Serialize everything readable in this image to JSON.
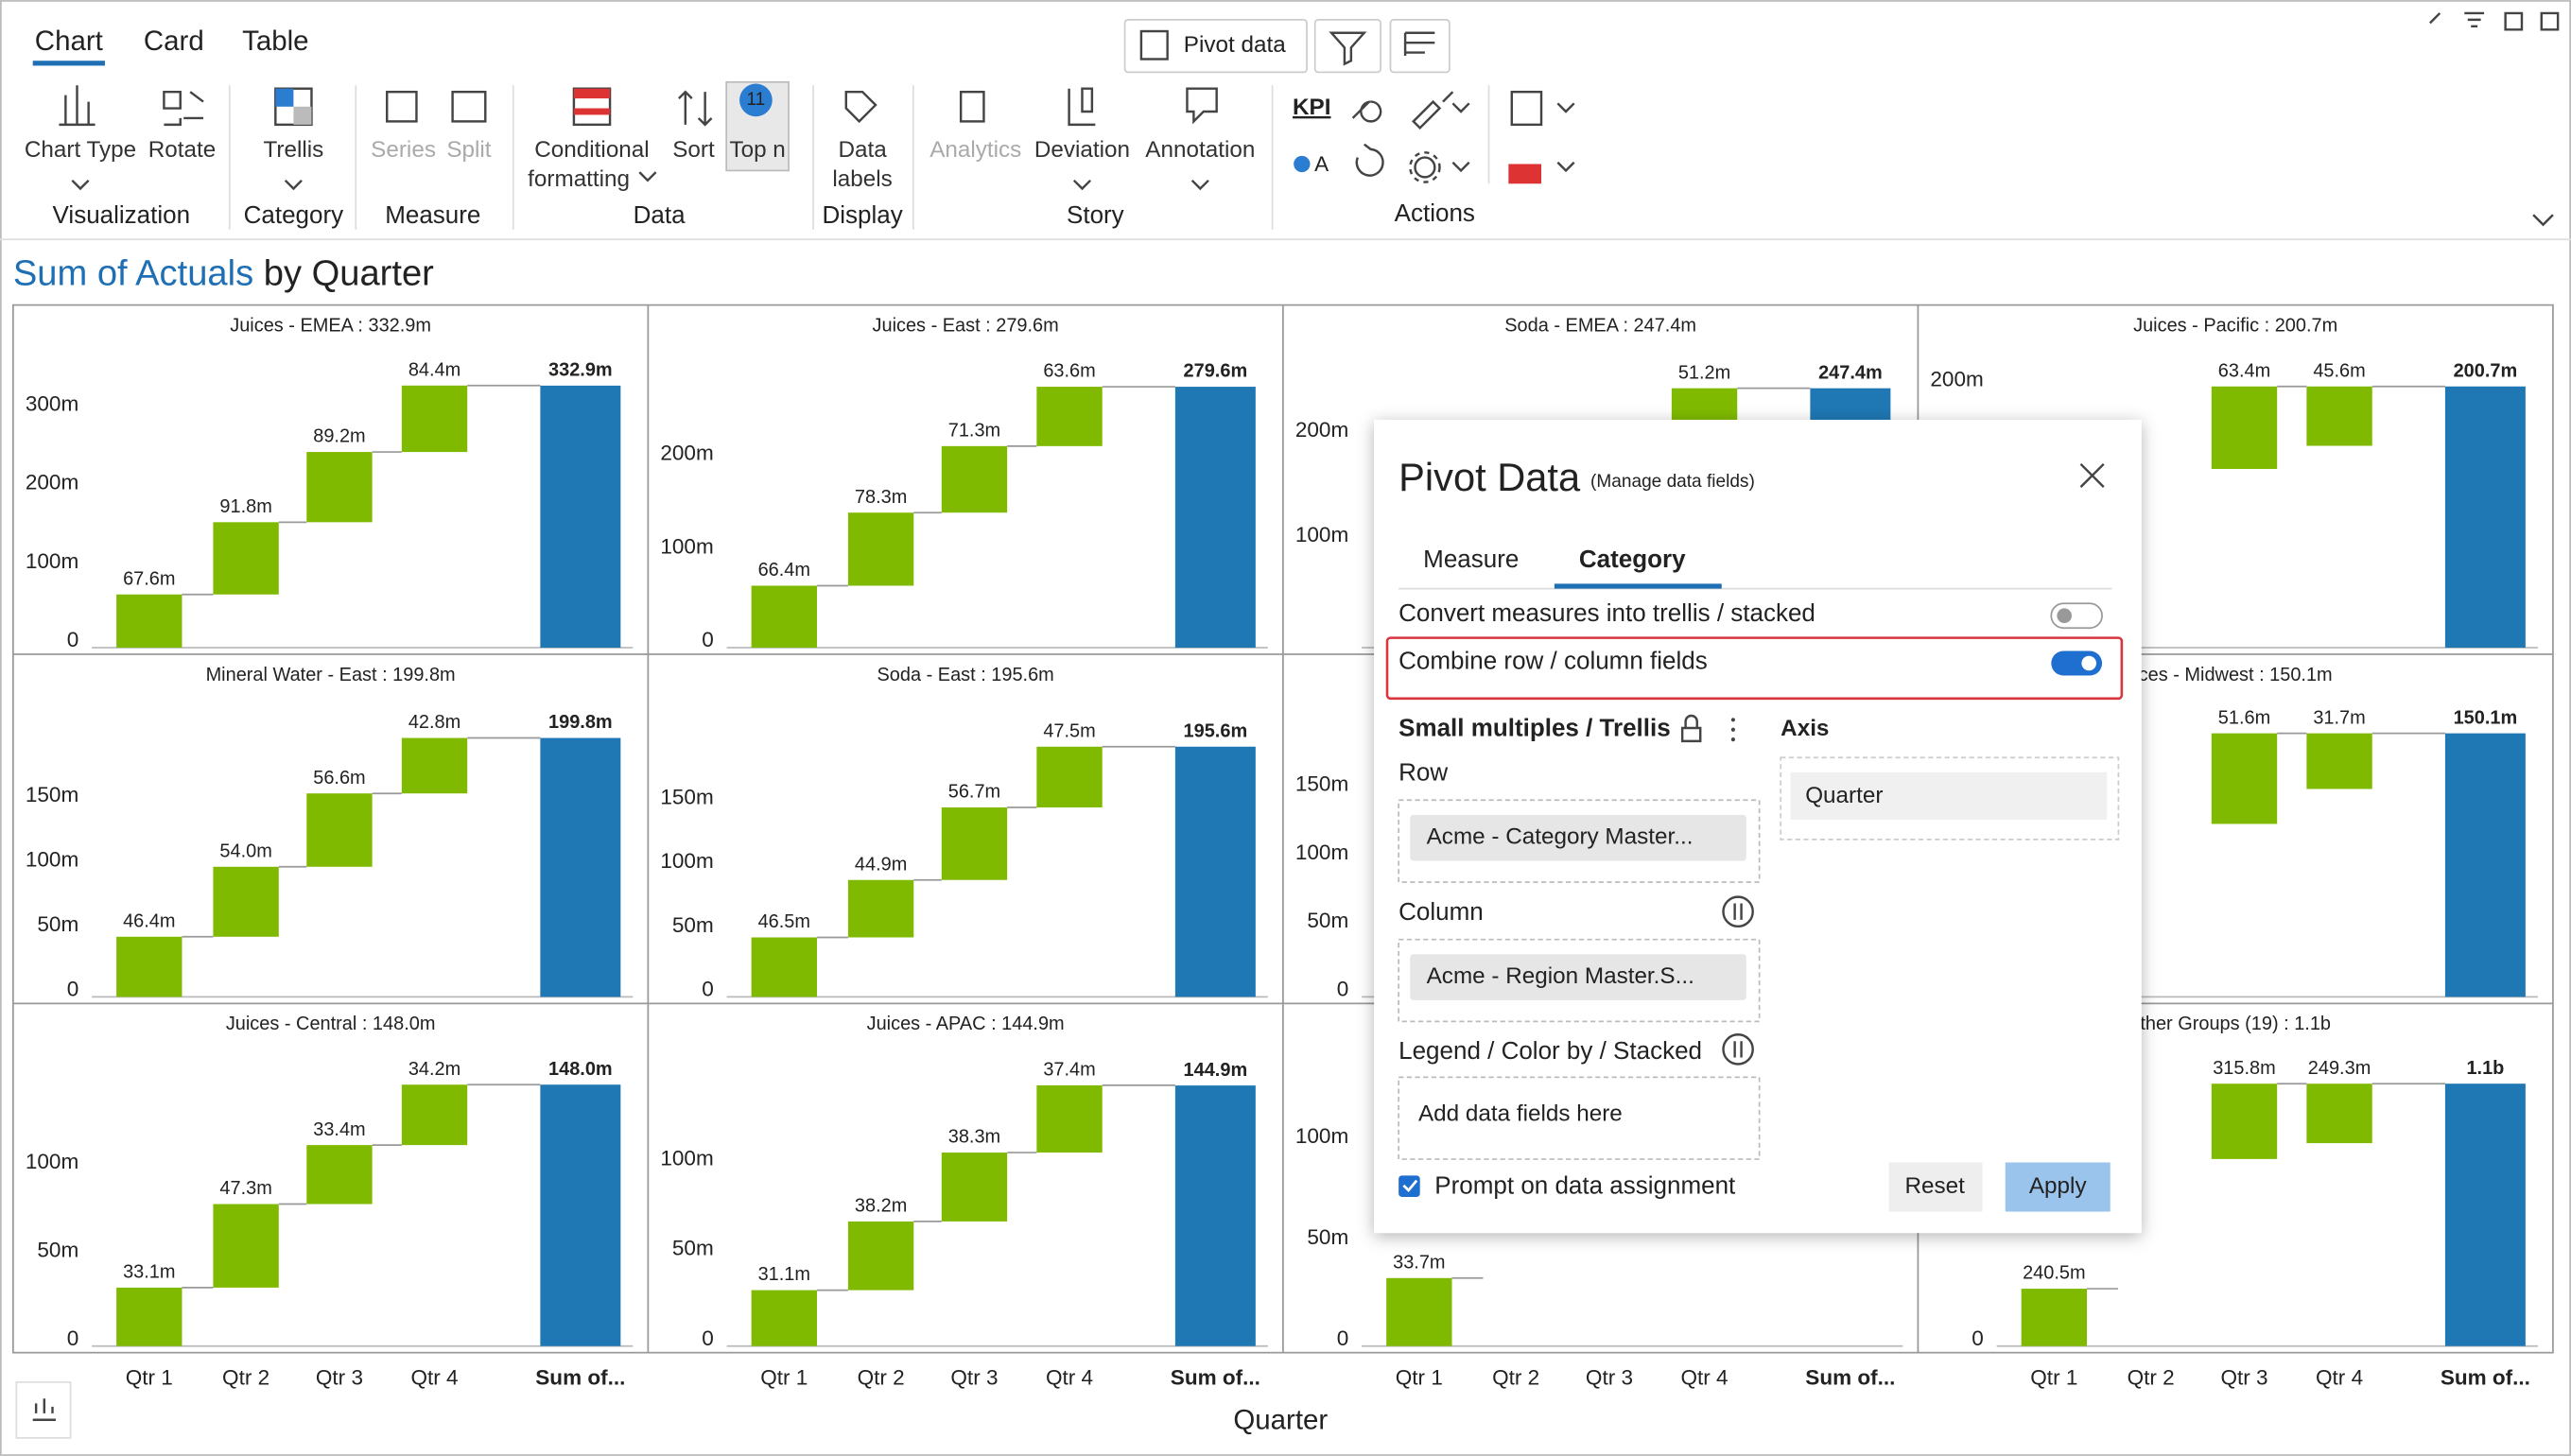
{
  "tabs": [
    "Chart",
    "Card",
    "Table"
  ],
  "pivot_button": "Pivot data",
  "ribbon": {
    "chart_type": "Chart Type",
    "rotate": "Rotate",
    "visualization": "Visualization",
    "trellis": "Trellis",
    "category": "Category",
    "series": "Series",
    "split": "Split",
    "measure": "Measure",
    "conditional": "Conditional",
    "formatting": "formatting",
    "sort": "Sort",
    "top_n": "Top n",
    "top_n_badge": "11",
    "data_group": "Data",
    "data": "Data",
    "labels": "labels",
    "display": "Display",
    "analytics": "Analytics",
    "deviation": "Deviation",
    "annotation": "Annotation",
    "story": "Story",
    "kpi": "KPI",
    "a": "A",
    "actions": "Actions"
  },
  "title": {
    "measure": "Sum of Actuals",
    "rest": "by Quarter"
  },
  "categories": [
    "Qtr 1",
    "Qtr 2",
    "Qtr 3",
    "Qtr 4",
    "Sum of..."
  ],
  "x_axis_title": "Quarter",
  "panels": [
    {
      "title": "Juices - EMEA :  332.9m",
      "values": [
        67.6,
        91.8,
        89.2,
        84.4
      ],
      "value_labels": [
        "67.6m",
        "91.8m",
        "89.2m",
        "84.4m"
      ],
      "total": 332.9,
      "total_label": "332.9m",
      "ylim": [
        0,
        377
      ],
      "yticks": [
        0,
        {
          "value": 100,
          "label": "100m"
        },
        {
          "value": 200,
          "label": "200m"
        },
        {
          "value": 300,
          "label": "300m"
        }
      ]
    },
    {
      "title": "Juices - East :  279.6m",
      "values": [
        66.4,
        78.3,
        71.3,
        63.6
      ],
      "value_labels": [
        "66.4m",
        "78.3m",
        "71.3m",
        "63.6m"
      ],
      "total": 279.6,
      "total_label": "279.6m",
      "ylim": [
        0,
        318
      ],
      "yticks": [
        0,
        {
          "value": 100,
          "label": "100m"
        },
        {
          "value": 200,
          "label": "200m"
        }
      ]
    },
    {
      "title": "Soda - EMEA :  247.4m",
      "values": [
        null,
        null,
        null,
        51.2
      ],
      "value_labels": [
        null,
        null,
        null,
        "51.2m"
      ],
      "total": 247.4,
      "total_label": "247.4m",
      "ylim": [
        0,
        283
      ],
      "yticks": [
        {
          "value": 100,
          "label": "100m"
        },
        {
          "value": 200,
          "label": "200m"
        }
      ]
    },
    {
      "title": "Juices - Pacific :  200.7m",
      "values": [
        null,
        null,
        63.4,
        45.6
      ],
      "value_labels": [
        null,
        null,
        "63.4m",
        "45.6m"
      ],
      "total": 200.7,
      "total_label": "200.7m",
      "ylim": [
        0,
        228
      ],
      "yticks": [
        {
          "value": 200,
          "label": "200m"
        }
      ]
    },
    {
      "title": "Mineral Water - East :  199.8m",
      "values": [
        46.4,
        54.0,
        56.6,
        42.8
      ],
      "value_labels": [
        "46.4m",
        "54.0m",
        "56.6m",
        "42.8m"
      ],
      "total": 199.8,
      "total_label": "199.8m",
      "ylim": [
        0,
        229
      ],
      "yticks": [
        0,
        {
          "value": 50,
          "label": "50m"
        },
        {
          "value": 100,
          "label": "100m"
        },
        {
          "value": 150,
          "label": "150m"
        }
      ]
    },
    {
      "title": "Soda - East :  195.6m",
      "values": [
        46.5,
        44.9,
        56.7,
        47.5
      ],
      "value_labels": [
        "46.5m",
        "44.9m",
        "56.7m",
        "47.5m"
      ],
      "total": 195.6,
      "total_label": "195.6m",
      "ylim": [
        0,
        232
      ],
      "yticks": [
        0,
        {
          "value": 50,
          "label": "50m"
        },
        {
          "value": 100,
          "label": "100m"
        },
        {
          "value": 150,
          "label": "150m"
        }
      ]
    },
    {
      "ylim": [
        0,
        217
      ],
      "yticks": [
        0,
        {
          "value": 50,
          "label": "50m"
        },
        {
          "value": 100,
          "label": "100m"
        },
        {
          "value": 150,
          "label": "150m"
        }
      ]
    },
    {
      "title": "ces - Midwest :  150.1m",
      "values": [
        null,
        null,
        51.6,
        31.7
      ],
      "value_labels": [
        null,
        null,
        "51.6m",
        "31.7m"
      ],
      "total": 150.1,
      "total_label": "150.1m",
      "ylim": [
        0,
        169
      ]
    },
    {
      "title": "Juices - Central :  148.0m",
      "values": [
        33.1,
        47.3,
        33.4,
        34.2
      ],
      "value_labels": [
        "33.1m",
        "47.3m",
        "33.4m",
        "34.2m"
      ],
      "total": 148.0,
      "total_label": "148.0m",
      "ylim": [
        0,
        168
      ],
      "yticks": [
        0,
        {
          "value": 50,
          "label": "50m"
        },
        {
          "value": 100,
          "label": "100m"
        }
      ]
    },
    {
      "title": "Juices - APAC :  144.9m",
      "values": [
        31.1,
        38.2,
        38.3,
        37.4
      ],
      "value_labels": [
        "31.1m",
        "38.2m",
        "38.3m",
        "37.4m"
      ],
      "total": 144.9,
      "total_label": "144.9m",
      "ylim": [
        0,
        165
      ],
      "yticks": [
        0,
        {
          "value": 50,
          "label": "50m"
        },
        {
          "value": 100,
          "label": "100m"
        }
      ]
    },
    {
      "values": [
        33.7,
        null,
        null,
        null
      ],
      "value_labels": [
        "33.7m",
        null,
        null,
        null
      ],
      "ylim": [
        0,
        147
      ],
      "yticks": [
        0,
        {
          "value": 50,
          "label": "50m"
        },
        {
          "value": 100,
          "label": "100m"
        }
      ]
    },
    {
      "title": "ther Groups (19) :  1.1b",
      "values": [
        240.5,
        null,
        315.8,
        249.3
      ],
      "value_labels": [
        "240.5m",
        null,
        "315.8m",
        "249.3m"
      ],
      "total": 1100,
      "total_label": "1.1b",
      "ylim": [
        0,
        1244
      ],
      "yticks": [
        0
      ]
    }
  ],
  "dialog": {
    "title": "Pivot Data",
    "subtitle": "(Manage data fields)",
    "tabs": [
      "Measure",
      "Category"
    ],
    "convert": "Convert measures into trellis / stacked",
    "combine": "Combine row / column fields",
    "section": "Small multiples / Trellis",
    "axis": "Axis",
    "axis_placeholder": "Quarter",
    "row": "Row",
    "row_field": "Acme - Category Master...",
    "column": "Column",
    "column_field": "Acme - Region Master.S...",
    "legend": "Legend / Color by / Stacked",
    "legend_placeholder": "Add data fields here",
    "prompt": "Prompt on data assignment",
    "reset": "Reset",
    "apply": "Apply"
  }
}
